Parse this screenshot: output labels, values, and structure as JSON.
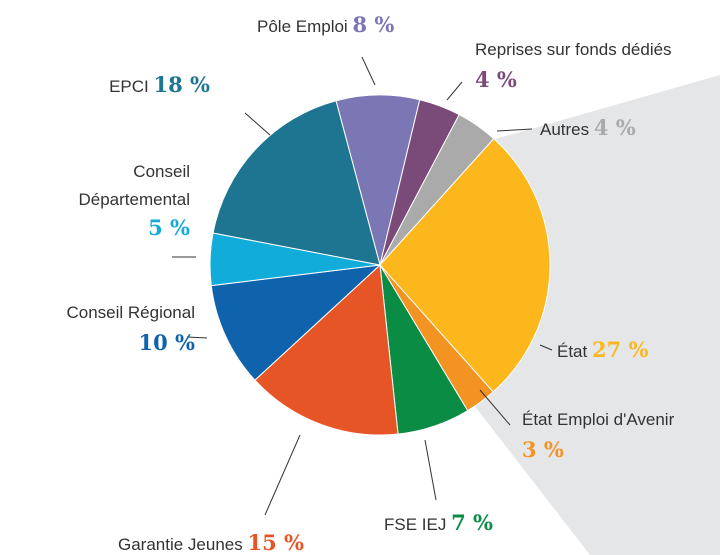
{
  "chart_data": {
    "type": "pie",
    "categories": [
      "Pôle Emploi",
      "Reprises sur fonds dédiés",
      "Autres",
      "État",
      "État Emploi d'Avenir",
      "FSE IEJ",
      "Garantie Jeunes",
      "Conseil Régional",
      "Conseil Départemental",
      "EPCI"
    ],
    "values": [
      8,
      4,
      4,
      27,
      3,
      7,
      15,
      10,
      5,
      18
    ],
    "value_labels": [
      "8 %",
      "4 %",
      "4 %",
      "27 %",
      "3 %",
      "7 %",
      "15 %",
      "10 %",
      "5 %",
      "18 %"
    ],
    "colors": [
      "#7b76b4",
      "#7a4a78",
      "#aaaaaa",
      "#fbb71c",
      "#f39322",
      "#0a8c44",
      "#e55526",
      "#0f63ad",
      "#11acd9",
      "#1e7592"
    ]
  }
}
